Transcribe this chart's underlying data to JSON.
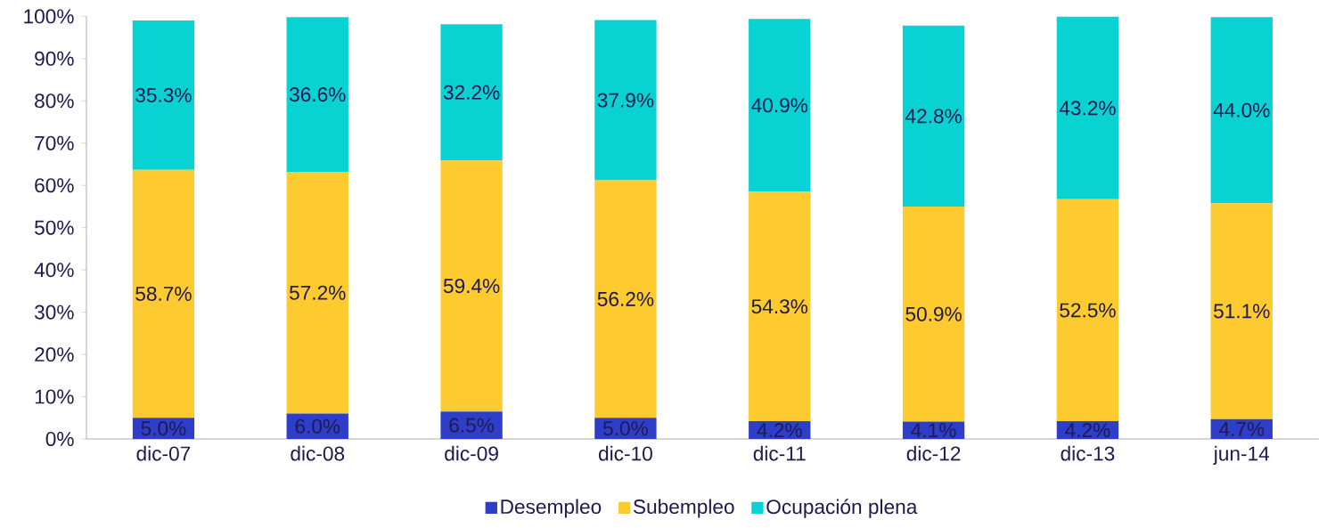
{
  "chart_data": {
    "type": "bar",
    "stacked": true,
    "categories": [
      "dic-07",
      "dic-08",
      "dic-09",
      "dic-10",
      "dic-11",
      "dic-12",
      "dic-13",
      "jun-14"
    ],
    "series": [
      {
        "name": "Desempleo",
        "color": "#2f3ec8",
        "values": [
          5.0,
          6.0,
          6.5,
          5.0,
          4.2,
          4.1,
          4.2,
          4.7
        ],
        "value_labels": [
          "5.0%",
          "6.0%",
          "6.5%",
          "5.0%",
          "4.2%",
          "4.1%",
          "4.2%",
          "4.7%"
        ]
      },
      {
        "name": "Subempleo",
        "color": "#fdca2f",
        "values": [
          58.7,
          57.2,
          59.4,
          56.2,
          54.3,
          50.9,
          52.5,
          51.1
        ],
        "value_labels": [
          "58.7%",
          "57.2%",
          "59.4%",
          "56.2%",
          "54.3%",
          "50.9%",
          "52.5%",
          "51.1%"
        ]
      },
      {
        "name": "Ocupación plena",
        "color": "#08d2d2",
        "values": [
          35.3,
          36.6,
          32.2,
          37.9,
          40.9,
          42.8,
          43.2,
          44.0
        ],
        "value_labels": [
          "35.3%",
          "36.6%",
          "32.2%",
          "37.9%",
          "40.9%",
          "42.8%",
          "43.2%",
          "44.0%"
        ]
      }
    ],
    "ylim": [
      0,
      100
    ],
    "yticks": [
      {
        "value": 0,
        "label": "0%"
      },
      {
        "value": 10,
        "label": "10%"
      },
      {
        "value": 20,
        "label": "20%"
      },
      {
        "value": 30,
        "label": "30%"
      },
      {
        "value": 40,
        "label": "40%"
      },
      {
        "value": 50,
        "label": "50%"
      },
      {
        "value": 60,
        "label": "60%"
      },
      {
        "value": 70,
        "label": "70%"
      },
      {
        "value": 80,
        "label": "80%"
      },
      {
        "value": 90,
        "label": "90%"
      },
      {
        "value": 100,
        "label": "100%"
      }
    ],
    "legend": "bottom",
    "grid": false
  }
}
